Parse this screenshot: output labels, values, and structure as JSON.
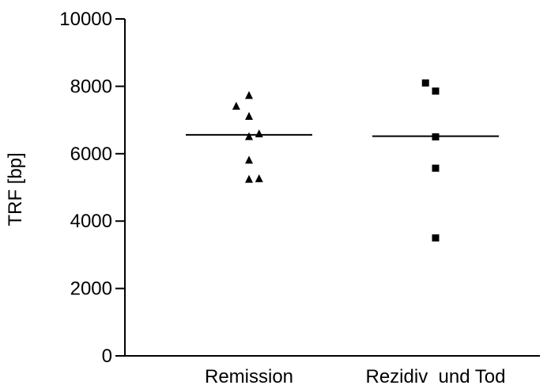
{
  "chart_data": {
    "type": "scatter",
    "title": "",
    "xlabel": "",
    "ylabel": "TRF [bp]",
    "ylim": [
      0,
      10000
    ],
    "yticks": [
      "0",
      "2000",
      "4000",
      "6000",
      "8000",
      "10000"
    ],
    "yticks_values": [
      0,
      2000,
      4000,
      6000,
      8000,
      10000
    ],
    "categories": [
      "Remission",
      "Rezidiv  und Tod"
    ],
    "grid": false,
    "legend": "none",
    "series": [
      {
        "category_index": 0,
        "marker": "triangle",
        "color": "#000000",
        "points": [
          {
            "jitter": -0.19,
            "y": 7400
          },
          {
            "jitter": 0.0,
            "y": 7720
          },
          {
            "jitter": 0.0,
            "y": 7100
          },
          {
            "jitter": 0.0,
            "y": 6500
          },
          {
            "jitter": 0.15,
            "y": 6580
          },
          {
            "jitter": 0.0,
            "y": 5800
          },
          {
            "jitter": 0.0,
            "y": 5230
          },
          {
            "jitter": 0.15,
            "y": 5250
          }
        ],
        "mean": 6560
      },
      {
        "category_index": 1,
        "marker": "square",
        "color": "#000000",
        "points": [
          {
            "jitter": -0.15,
            "y": 8100
          },
          {
            "jitter": 0.0,
            "y": 7860
          },
          {
            "jitter": 0.0,
            "y": 6500
          },
          {
            "jitter": 0.0,
            "y": 5570
          },
          {
            "jitter": 0.0,
            "y": 3500
          }
        ],
        "mean": 6520
      }
    ]
  }
}
